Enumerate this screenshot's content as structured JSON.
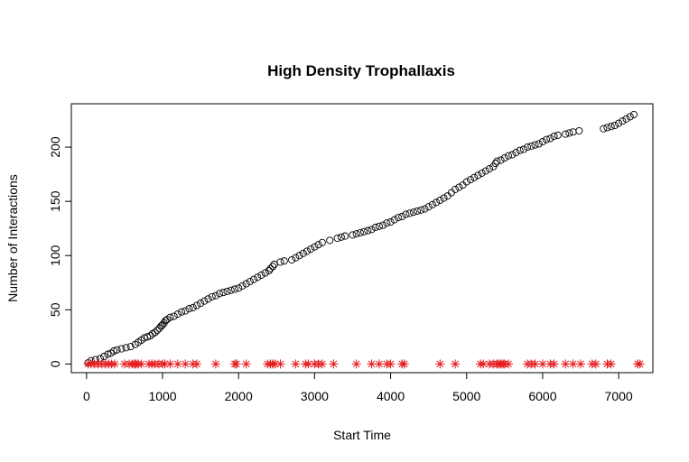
{
  "chart_data": {
    "type": "scatter",
    "title": "High Density Trophallaxis",
    "xlabel": "Start Time",
    "ylabel": "Number of Interactions",
    "xlim": [
      -200,
      7450
    ],
    "ylim": [
      -8,
      240
    ],
    "x_ticks": [
      0,
      1000,
      2000,
      3000,
      4000,
      5000,
      6000,
      7000
    ],
    "y_ticks": [
      0,
      50,
      100,
      150,
      200
    ],
    "grid": false,
    "legend": "none",
    "colors": {
      "cumulative": "#000000",
      "events": "#e41a1c"
    },
    "series": [
      {
        "marker": "open-circle",
        "x": [
          20,
          60,
          120,
          180,
          230,
          280,
          320,
          360,
          400,
          460,
          520,
          580,
          640,
          680,
          720,
          760,
          800,
          840,
          870,
          900,
          930,
          960,
          980,
          1000,
          1020,
          1040,
          1060,
          1100,
          1150,
          1200,
          1250,
          1300,
          1350,
          1400,
          1450,
          1500,
          1550,
          1600,
          1650,
          1700,
          1750,
          1800,
          1850,
          1900,
          1950,
          2000,
          2050,
          2100,
          2150,
          2200,
          2250,
          2300,
          2350,
          2400,
          2420,
          2450,
          2470,
          2550,
          2600,
          2700,
          2750,
          2800,
          2850,
          2900,
          2950,
          3000,
          3050,
          3100,
          3200,
          3300,
          3350,
          3400,
          3500,
          3550,
          3600,
          3650,
          3700,
          3750,
          3800,
          3850,
          3900,
          3950,
          4000,
          4050,
          4100,
          4150,
          4200,
          4250,
          4300,
          4350,
          4400,
          4450,
          4500,
          4550,
          4600,
          4650,
          4700,
          4750,
          4800,
          4850,
          4900,
          4950,
          5000,
          5050,
          5100,
          5150,
          5200,
          5250,
          5300,
          5350,
          5380,
          5400,
          5450,
          5500,
          5550,
          5600,
          5650,
          5700,
          5750,
          5800,
          5850,
          5900,
          5950,
          6000,
          6050,
          6100,
          6150,
          6200,
          6300,
          6350,
          6400,
          6480,
          6800,
          6850,
          6900,
          6950,
          7000,
          7050,
          7100,
          7150,
          7200
        ],
        "values": [
          1,
          3,
          4,
          5,
          7,
          9,
          10,
          12,
          13,
          14,
          15,
          16,
          18,
          20,
          22,
          24,
          25,
          26,
          28,
          29,
          31,
          33,
          35,
          36,
          38,
          40,
          41,
          43,
          44,
          46,
          48,
          49,
          51,
          52,
          54,
          56,
          58,
          60,
          62,
          63,
          65,
          66,
          67,
          68,
          69,
          70,
          72,
          74,
          76,
          78,
          80,
          82,
          84,
          86,
          88,
          90,
          92,
          94,
          95,
          96,
          98,
          100,
          102,
          104,
          106,
          108,
          110,
          112,
          114,
          116,
          117,
          118,
          119,
          120,
          121,
          122,
          123,
          124,
          126,
          127,
          128,
          130,
          131,
          133,
          135,
          136,
          138,
          139,
          140,
          141,
          142,
          143,
          145,
          147,
          149,
          151,
          153,
          155,
          158,
          161,
          163,
          165,
          168,
          170,
          172,
          174,
          176,
          178,
          180,
          182,
          185,
          187,
          188,
          190,
          192,
          193,
          195,
          197,
          198,
          200,
          201,
          202,
          203,
          205,
          207,
          208,
          210,
          211,
          212,
          213,
          214,
          215,
          217,
          218,
          219,
          220,
          222,
          224,
          226,
          228,
          230
        ]
      },
      {
        "marker": "asterisk",
        "x": [
          20,
          60,
          100,
          150,
          200,
          250,
          290,
          330,
          370,
          500,
          560,
          600,
          630,
          650,
          680,
          720,
          820,
          860,
          900,
          950,
          1000,
          1030,
          1100,
          1200,
          1300,
          1400,
          1450,
          1700,
          1950,
          1970,
          2100,
          2380,
          2420,
          2450,
          2480,
          2550,
          2750,
          2880,
          2920,
          3000,
          3050,
          3100,
          3250,
          3550,
          3750,
          3850,
          3950,
          4000,
          4150,
          4180,
          4650,
          4850,
          5180,
          5220,
          5300,
          5350,
          5400,
          5420,
          5450,
          5480,
          5500,
          5550,
          5800,
          5850,
          5900,
          6000,
          6100,
          6150,
          6300,
          6400,
          6500,
          6650,
          6700,
          6850,
          6900,
          7250,
          7280
        ],
        "values": [
          0,
          0,
          0,
          0,
          0,
          0,
          0,
          0,
          0,
          0,
          0,
          0,
          0,
          0,
          0,
          0,
          0,
          0,
          0,
          0,
          0,
          0,
          0,
          0,
          0,
          0,
          0,
          0,
          0,
          0,
          0,
          0,
          0,
          0,
          0,
          0,
          0,
          0,
          0,
          0,
          0,
          0,
          0,
          0,
          0,
          0,
          0,
          0,
          0,
          0,
          0,
          0,
          0,
          0,
          0,
          0,
          0,
          0,
          0,
          0,
          0,
          0,
          0,
          0,
          0,
          0,
          0,
          0,
          0,
          0,
          0,
          0,
          0,
          0,
          0,
          0,
          0
        ]
      }
    ]
  }
}
